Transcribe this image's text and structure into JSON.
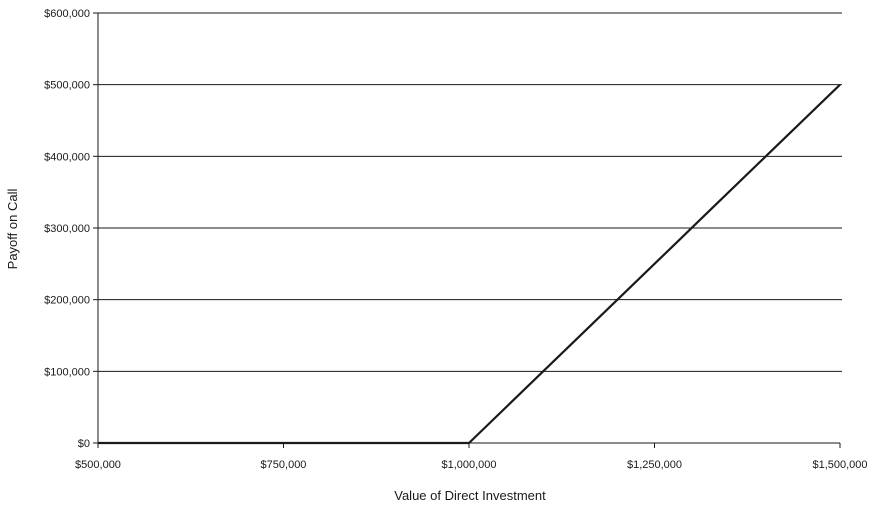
{
  "chart_data": {
    "type": "line",
    "title": "",
    "xlabel": "Value of Direct Investment",
    "ylabel": "Payoff on Call",
    "xlim": [
      500000,
      1500000
    ],
    "ylim": [
      0,
      600000
    ],
    "grid": "horizontal",
    "line_color": "#1a1a1a",
    "x_ticks": [
      {
        "value": 500000,
        "label": "$500,000"
      },
      {
        "value": 750000,
        "label": "$750,000"
      },
      {
        "value": 1000000,
        "label": "$1,000,000"
      },
      {
        "value": 1250000,
        "label": "$1,250,000"
      },
      {
        "value": 1500000,
        "label": "$1,500,000"
      }
    ],
    "y_ticks": [
      {
        "value": 0,
        "label": "$0"
      },
      {
        "value": 100000,
        "label": "$100,000"
      },
      {
        "value": 200000,
        "label": "$200,000"
      },
      {
        "value": 300000,
        "label": "$300,000"
      },
      {
        "value": 400000,
        "label": "$400,000"
      },
      {
        "value": 500000,
        "label": "$500,000"
      },
      {
        "value": 600000,
        "label": "$600,000"
      }
    ],
    "series": [
      {
        "x": [
          500000,
          1000000,
          1100000,
          1200000,
          1225000,
          1275000,
          1325000,
          1400000,
          1500000
        ],
        "y": [
          0,
          0,
          100000,
          200000,
          225000,
          275000,
          325000,
          400000,
          500000
        ]
      }
    ]
  }
}
